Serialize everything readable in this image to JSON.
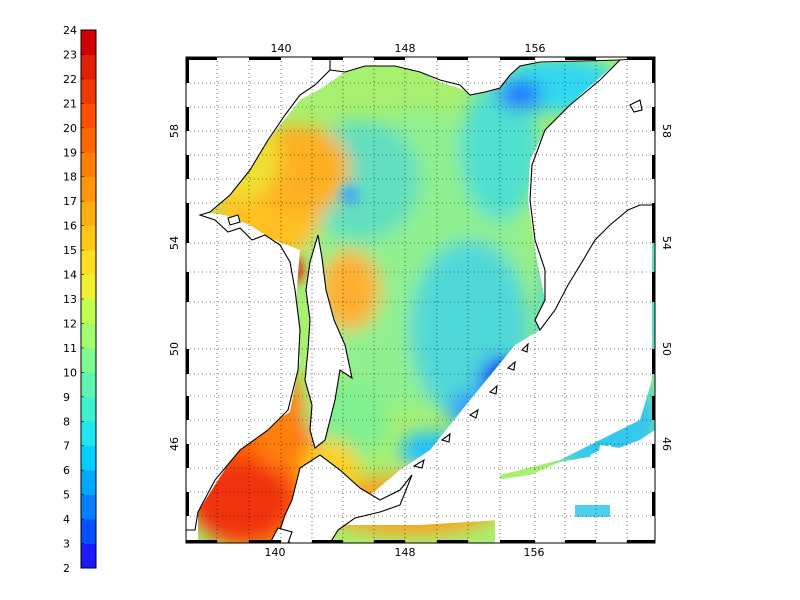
{
  "colorbar": {
    "min": 2,
    "max": 24,
    "labels": [
      "24",
      "23",
      "22",
      "21",
      "20",
      "19",
      "18",
      "17",
      "16",
      "15",
      "14",
      "13",
      "12",
      "11",
      "10",
      "9",
      "8",
      "7",
      "6",
      "5",
      "4",
      "3",
      "2"
    ],
    "colors": [
      "#1a1aff",
      "#0050ff",
      "#0080ff",
      "#00a8ff",
      "#00cfff",
      "#1fe6f0",
      "#3ff0d0",
      "#5ff5b0",
      "#80fa90",
      "#a0ff70",
      "#c0ff50",
      "#dcfa3c",
      "#f0f030",
      "#ffe020",
      "#ffc818",
      "#ffb010",
      "#ff9808",
      "#ff8000",
      "#ff6800",
      "#ff5000",
      "#f03800",
      "#e02000",
      "#d00000"
    ]
  },
  "map": {
    "top_lon_labels": [
      "140",
      "148",
      "156"
    ],
    "bottom_lon_labels": [
      "140",
      "148",
      "156"
    ],
    "left_lat_labels": [
      "58",
      "54",
      "50",
      "46"
    ],
    "right_lat_labels": [
      "58",
      "54",
      "50",
      "46"
    ],
    "land_color": "#ffffff",
    "coast_color": "#000000"
  }
}
